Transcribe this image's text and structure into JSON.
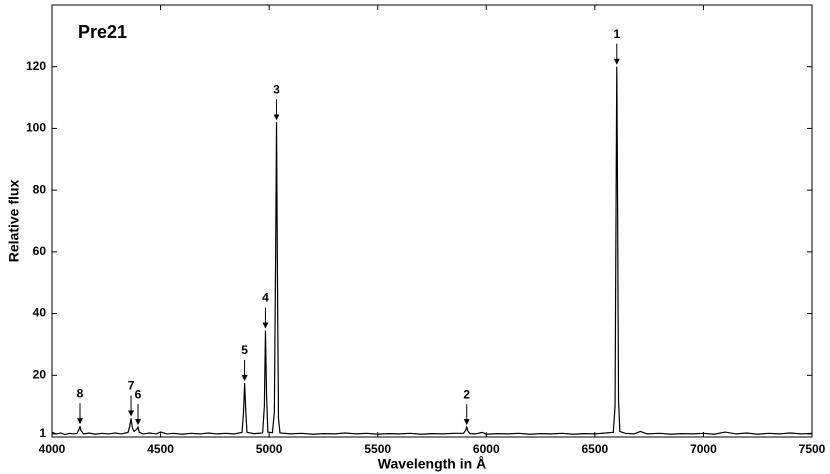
{
  "chart_data": {
    "type": "line",
    "title": "Pre21",
    "x_label": "Wavelength in Å",
    "y_label": "Relative flux",
    "color": "#000000",
    "x": [
      4000,
      4020,
      4040,
      4060,
      4080,
      4100,
      4115,
      4125,
      4129,
      4133,
      4145,
      4170,
      4200,
      4230,
      4260,
      4290,
      4320,
      4350,
      4358,
      4364,
      4370,
      4378,
      4390,
      4396,
      4402,
      4420,
      4450,
      4480,
      4500,
      4530,
      4560,
      4600,
      4640,
      4680,
      4720,
      4760,
      4800,
      4840,
      4875,
      4882,
      4887,
      4892,
      4898,
      4930,
      4970,
      4978,
      4983,
      4988,
      4994,
      5015,
      5024,
      5030,
      5034,
      5038,
      5043,
      5050,
      5100,
      5150,
      5200,
      5250,
      5300,
      5350,
      5400,
      5450,
      5500,
      5550,
      5600,
      5650,
      5700,
      5750,
      5800,
      5850,
      5895,
      5905,
      5910,
      5915,
      5925,
      5950,
      5980,
      6000,
      6050,
      6100,
      6150,
      6200,
      6250,
      6300,
      6350,
      6400,
      6450,
      6500,
      6550,
      6585,
      6593,
      6598,
      6601,
      6604,
      6609,
      6615,
      6640,
      6680,
      6710,
      6740,
      6800,
      6850,
      6900,
      6950,
      7000,
      7050,
      7100,
      7150,
      7200,
      7250,
      7300,
      7350,
      7400,
      7450,
      7500
    ],
    "values": [
      1.5,
      1.0,
      1.3,
      0.8,
      1.2,
      1.0,
      1.2,
      2.5,
      3.5,
      2.2,
      1.0,
      1.3,
      0.9,
      1.2,
      1.0,
      1.3,
      1.0,
      1.5,
      3.5,
      6.0,
      3.0,
      1.8,
      2.5,
      3.2,
      1.5,
      1.0,
      1.3,
      1.0,
      1.6,
      1.0,
      1.2,
      0.9,
      1.2,
      1.0,
      1.3,
      1.0,
      1.2,
      1.0,
      1.5,
      8,
      17.5,
      9,
      1.5,
      1.1,
      1.3,
      10,
      34.5,
      14,
      1.6,
      1.4,
      8,
      60,
      102,
      55,
      6,
      1.3,
      1.0,
      1.2,
      0.9,
      1.1,
      1.0,
      1.3,
      1.0,
      1.2,
      0.9,
      1.1,
      1.0,
      1.2,
      0.9,
      1.1,
      1.0,
      1.2,
      1.2,
      2.2,
      3.2,
      2.0,
      1.1,
      1.0,
      1.5,
      0.9,
      1.1,
      1.0,
      1.2,
      0.9,
      1.1,
      1.0,
      1.2,
      0.9,
      1.1,
      1.0,
      1.3,
      1.5,
      10,
      80,
      120,
      85,
      12,
      1.8,
      1.2,
      1.0,
      1.8,
      1.0,
      1.2,
      0.9,
      1.1,
      1.0,
      1.2,
      0.9,
      1.6,
      1.0,
      1.3,
      0.9,
      1.2,
      1.0,
      1.3,
      1.0,
      1.2
    ],
    "annotations": [
      {
        "text": "1",
        "x": 6601
      },
      {
        "text": "2",
        "x": 5910
      },
      {
        "text": "3",
        "x": 5034
      },
      {
        "text": "4",
        "x": 4983
      },
      {
        "text": "5",
        "x": 4887
      },
      {
        "text": "6",
        "x": 4396
      },
      {
        "text": "7",
        "x": 4364
      },
      {
        "text": "8",
        "x": 4129
      }
    ],
    "xlim": [
      4000,
      7500
    ],
    "ylim": [
      0,
      140
    ],
    "xticks": [
      4000,
      4500,
      5000,
      5500,
      6000,
      6500,
      7000,
      7500
    ],
    "yticks": [
      1,
      20,
      40,
      60,
      80,
      100,
      120
    ]
  }
}
